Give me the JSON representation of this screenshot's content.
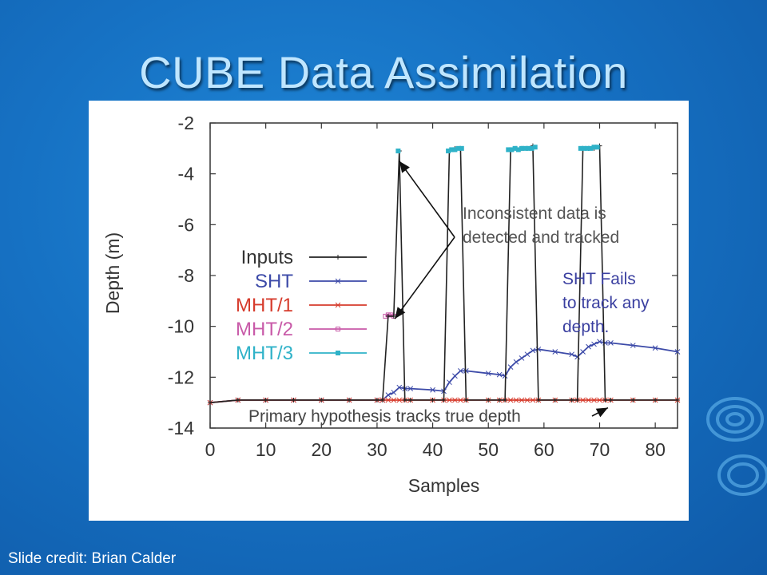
{
  "slide": {
    "title": "CUBE Data Assimilation",
    "credit": "Slide credit: Brian Calder"
  },
  "chart_data": {
    "type": "line",
    "xlabel": "Samples",
    "ylabel": "Depth (m)",
    "xlim": [
      0,
      84
    ],
    "ylim": [
      -14,
      -2
    ],
    "xticks": [
      0,
      10,
      20,
      30,
      40,
      50,
      60,
      70,
      80
    ],
    "yticks": [
      -2,
      -4,
      -6,
      -8,
      -10,
      -12,
      -14
    ],
    "grid": false,
    "legend_position": "center-left",
    "series": [
      {
        "name": "Inputs",
        "color": "#222222",
        "marker": "plus",
        "x": [
          0,
          5,
          10,
          15,
          20,
          25,
          30,
          31,
          32,
          33,
          34,
          35,
          36,
          40,
          42,
          43,
          44,
          45,
          46,
          50,
          52,
          53,
          54,
          55,
          56,
          57,
          58,
          59,
          62,
          65,
          66,
          67,
          68,
          69,
          70,
          71,
          72,
          76,
          80,
          84
        ],
        "y": [
          -13.0,
          -12.9,
          -12.9,
          -12.9,
          -12.9,
          -12.9,
          -12.9,
          -12.9,
          -9.6,
          -9.6,
          -3.1,
          -12.9,
          -12.9,
          -12.9,
          -12.9,
          -3.1,
          -3.0,
          -3.0,
          -12.9,
          -12.9,
          -12.9,
          -12.9,
          -3.1,
          -3.0,
          -3.0,
          -3.0,
          -2.9,
          -12.9,
          -12.9,
          -12.9,
          -12.9,
          -3.0,
          -3.0,
          -3.0,
          -2.9,
          -12.9,
          -12.9,
          -12.9,
          -12.9,
          -12.9
        ]
      },
      {
        "name": "SHT",
        "color": "#3c4aa8",
        "marker": "x",
        "x": [
          0,
          5,
          10,
          15,
          20,
          25,
          30,
          31,
          32,
          33,
          34,
          35,
          36,
          40,
          42,
          43,
          44,
          45,
          46,
          50,
          52,
          53,
          54,
          55,
          56,
          57,
          58,
          59,
          62,
          65,
          66,
          67,
          68,
          69,
          70,
          71,
          72,
          76,
          80,
          84
        ],
        "y": [
          -13.0,
          -12.9,
          -12.9,
          -12.9,
          -12.9,
          -12.9,
          -12.9,
          -12.9,
          -12.7,
          -12.6,
          -12.4,
          -12.45,
          -12.45,
          -12.5,
          -12.55,
          -12.2,
          -11.95,
          -11.75,
          -11.75,
          -11.85,
          -11.9,
          -11.95,
          -11.6,
          -11.4,
          -11.25,
          -11.1,
          -10.95,
          -10.9,
          -11.0,
          -11.1,
          -11.2,
          -11.0,
          -10.8,
          -10.7,
          -10.6,
          -10.65,
          -10.65,
          -10.75,
          -10.85,
          -11.0
        ]
      },
      {
        "name": "MHT/1",
        "color": "#d63b2c",
        "marker": "x",
        "x": [
          0,
          5,
          10,
          15,
          20,
          25,
          30,
          31,
          32,
          33,
          34,
          35,
          36,
          40,
          42,
          43,
          44,
          45,
          46,
          50,
          52,
          53,
          54,
          55,
          56,
          57,
          58,
          59,
          62,
          65,
          66,
          67,
          68,
          69,
          70,
          71,
          72,
          76,
          80,
          84
        ],
        "y": [
          -13.0,
          -12.9,
          -12.9,
          -12.9,
          -12.9,
          -12.9,
          -12.9,
          -12.9,
          -12.9,
          -12.9,
          -12.9,
          -12.9,
          -12.9,
          -12.9,
          -12.9,
          -12.9,
          -12.9,
          -12.9,
          -12.9,
          -12.9,
          -12.9,
          -12.9,
          -12.9,
          -12.9,
          -12.9,
          -12.9,
          -12.9,
          -12.9,
          -12.9,
          -12.9,
          -12.9,
          -12.9,
          -12.9,
          -12.9,
          -12.9,
          -12.9,
          -12.9,
          -12.9,
          -12.9,
          -12.9
        ]
      },
      {
        "name": "MHT/2",
        "color": "#c85aa8",
        "marker": "square-open",
        "x": [
          31.5,
          32,
          32.5,
          33
        ],
        "y": [
          -9.6,
          -9.55,
          -9.55,
          -9.6
        ]
      },
      {
        "name": "MHT/3",
        "color": "#2fb2c8",
        "marker": "square-filled",
        "x": [
          33.8,
          42.8,
          43.4,
          44,
          44.6,
          45.2,
          53.6,
          54.2,
          54.8,
          55.4,
          56,
          56.6,
          57.2,
          57.8,
          58.4,
          66.6,
          67.2,
          67.8,
          68.4,
          69,
          69.6
        ],
        "y": [
          -3.1,
          -3.1,
          -3.05,
          -3.05,
          -3.0,
          -3.0,
          -3.05,
          -3.05,
          -3.0,
          -3.05,
          -3.0,
          -3.0,
          -3.0,
          -3.0,
          -2.95,
          -3.0,
          -3.0,
          -3.0,
          -3.0,
          -2.95,
          -2.95
        ]
      }
    ],
    "annotations": [
      {
        "id": "inconsistent",
        "lines": [
          "Inconsistent data is",
          "detected and tracked"
        ],
        "color": "#555555",
        "points_to": [
          [
            34,
            -3.5
          ],
          [
            33.2,
            -9.7
          ]
        ]
      },
      {
        "id": "sht_fails",
        "lines": [
          "SHT Fails",
          "to track any",
          "depth."
        ],
        "color": "#3a3fa0"
      },
      {
        "id": "primary",
        "lines": [
          "Primary hypothesis tracks true depth"
        ],
        "color": "#444444",
        "points_to": [
          [
            71.5,
            -13.2
          ]
        ]
      }
    ]
  }
}
